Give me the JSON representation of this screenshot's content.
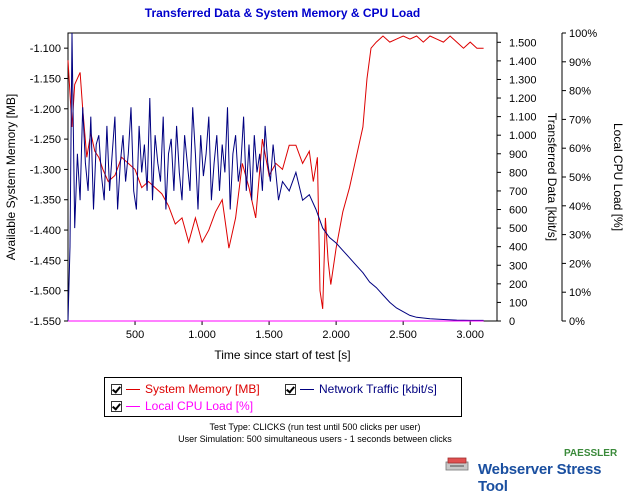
{
  "chart_data": {
    "type": "line",
    "title": "Transferred Data & System Memory & CPU Load",
    "xlabel": "Time since start of test [s]",
    "xlim": [
      0,
      3200
    ],
    "x_ticks": [
      500,
      1000,
      1500,
      2000,
      2500,
      3000
    ],
    "x_tick_labels": [
      "500",
      "1.000",
      "1.500",
      "2.000",
      "2.500",
      "3.000"
    ],
    "axes": {
      "left": {
        "label": "Available System Memory [MB]",
        "range": [
          -1.55,
          -1.075
        ],
        "ticks": [
          -1.55,
          -1.5,
          -1.45,
          -1.4,
          -1.35,
          -1.3,
          -1.25,
          -1.2,
          -1.15,
          -1.1
        ],
        "tick_labels": [
          "-1.550",
          "-1.500",
          "-1.450",
          "-1.400",
          "-1.350",
          "-1.300",
          "-1.250",
          "-1.200",
          "-1.150",
          "-1.100"
        ]
      },
      "right1": {
        "label": "Transferred Data [kbit/s]",
        "range": [
          0,
          1550
        ],
        "ticks": [
          0,
          100,
          200,
          300,
          400,
          500,
          600,
          700,
          800,
          900,
          1000,
          1100,
          1200,
          1300,
          1400,
          1500
        ],
        "tick_labels": [
          "0",
          "100",
          "200",
          "300",
          "400",
          "500",
          "600",
          "700",
          "800",
          "900",
          "1.000",
          "1.100",
          "1.200",
          "1.300",
          "1.400",
          "1.500"
        ]
      },
      "right2": {
        "label": "Local CPU Load [%]",
        "range": [
          0,
          100
        ],
        "ticks": [
          0,
          10,
          20,
          30,
          40,
          50,
          60,
          70,
          80,
          90,
          100
        ],
        "tick_labels": [
          "0%",
          "10%",
          "20%",
          "30%",
          "40%",
          "50%",
          "60%",
          "70%",
          "80%",
          "90%",
          "100%"
        ]
      }
    },
    "series": [
      {
        "name": "System Memory [MB]",
        "axis": "left",
        "color": "#dd0000",
        "x": [
          0,
          30,
          50,
          90,
          110,
          140,
          170,
          200,
          230,
          260,
          300,
          350,
          400,
          450,
          500,
          550,
          600,
          650,
          700,
          750,
          800,
          850,
          900,
          950,
          1000,
          1050,
          1100,
          1150,
          1200,
          1250,
          1300,
          1350,
          1400,
          1450,
          1500,
          1550,
          1600,
          1650,
          1700,
          1750,
          1800,
          1830,
          1860,
          1880,
          1900,
          1920,
          1940,
          1960,
          2000,
          2050,
          2100,
          2150,
          2200,
          2230,
          2260,
          2300,
          2350,
          2400,
          2450,
          2500,
          2550,
          2600,
          2650,
          2700,
          2750,
          2800,
          2850,
          2900,
          2950,
          3000,
          3050,
          3100
        ],
        "y": [
          -1.12,
          -1.23,
          -1.16,
          -1.14,
          -1.2,
          -1.28,
          -1.24,
          -1.27,
          -1.28,
          -1.3,
          -1.32,
          -1.31,
          -1.28,
          -1.29,
          -1.3,
          -1.33,
          -1.32,
          -1.33,
          -1.34,
          -1.36,
          -1.39,
          -1.38,
          -1.42,
          -1.38,
          -1.42,
          -1.4,
          -1.37,
          -1.35,
          -1.43,
          -1.38,
          -1.29,
          -1.33,
          -1.38,
          -1.25,
          -1.31,
          -1.29,
          -1.3,
          -1.26,
          -1.26,
          -1.29,
          -1.27,
          -1.32,
          -1.28,
          -1.5,
          -1.53,
          -1.38,
          -1.45,
          -1.49,
          -1.43,
          -1.37,
          -1.33,
          -1.28,
          -1.23,
          -1.15,
          -1.1,
          -1.09,
          -1.08,
          -1.09,
          -1.085,
          -1.08,
          -1.085,
          -1.08,
          -1.09,
          -1.08,
          -1.085,
          -1.09,
          -1.08,
          -1.09,
          -1.1,
          -1.09,
          -1.1,
          -1.1
        ]
      },
      {
        "name": "Network Traffic [kbit/s]",
        "axis": "right1",
        "color": "#000080",
        "x": [
          0,
          15,
          30,
          50,
          70,
          90,
          110,
          130,
          150,
          170,
          190,
          210,
          230,
          250,
          270,
          290,
          310,
          330,
          350,
          370,
          390,
          410,
          430,
          450,
          470,
          490,
          510,
          530,
          550,
          570,
          590,
          610,
          630,
          650,
          670,
          690,
          710,
          730,
          750,
          770,
          790,
          810,
          830,
          850,
          870,
          890,
          910,
          930,
          950,
          970,
          990,
          1010,
          1030,
          1050,
          1070,
          1090,
          1110,
          1130,
          1150,
          1170,
          1190,
          1210,
          1230,
          1250,
          1270,
          1290,
          1310,
          1330,
          1350,
          1370,
          1390,
          1410,
          1430,
          1450,
          1470,
          1490,
          1510,
          1530,
          1550,
          1570,
          1600,
          1650,
          1700,
          1750,
          1800,
          1850,
          1900,
          1950,
          2000,
          2050,
          2100,
          2150,
          2200,
          2250,
          2300,
          2350,
          2400,
          2450,
          2500,
          2550,
          2600,
          2700,
          2800,
          2900,
          3000,
          3100
        ],
        "y": [
          0,
          400,
          1550,
          500,
          900,
          650,
          1150,
          850,
          700,
          1100,
          600,
          950,
          1000,
          780,
          650,
          1050,
          700,
          900,
          1100,
          600,
          850,
          1000,
          750,
          900,
          1150,
          700,
          600,
          1050,
          800,
          950,
          700,
          1200,
          650,
          1000,
          850,
          750,
          1100,
          600,
          900,
          980,
          700,
          1050,
          800,
          650,
          1000,
          850,
          700,
          1150,
          900,
          600,
          1000,
          780,
          900,
          1100,
          650,
          850,
          1000,
          700,
          950,
          800,
          1150,
          600,
          900,
          1000,
          750,
          850,
          1100,
          700,
          950,
          650,
          1000,
          800,
          900,
          700,
          1050,
          850,
          750,
          950,
          800,
          650,
          750,
          700,
          800,
          650,
          680,
          600,
          500,
          450,
          420,
          380,
          340,
          300,
          260,
          210,
          180,
          140,
          100,
          70,
          50,
          30,
          20,
          12,
          8,
          5,
          3,
          3
        ]
      },
      {
        "name": "Local CPU Load [%]",
        "axis": "right2",
        "color": "#ff00ff",
        "x": [
          0,
          3100
        ],
        "y": [
          0,
          0
        ]
      }
    ],
    "legend": [
      "System Memory [MB]",
      "Network Traffic [kbit/s]",
      "Local CPU Load [%]"
    ],
    "legend_position": "bottom",
    "grid": false
  },
  "footer": {
    "line1": "Test Type: CLICKS (run test until 500 clicks per user)",
    "line2": "User Simulation: 500 simultaneous users - 1 seconds between clicks"
  },
  "brand": {
    "company": "PAESSLER",
    "product": "Webserver Stress Tool"
  }
}
